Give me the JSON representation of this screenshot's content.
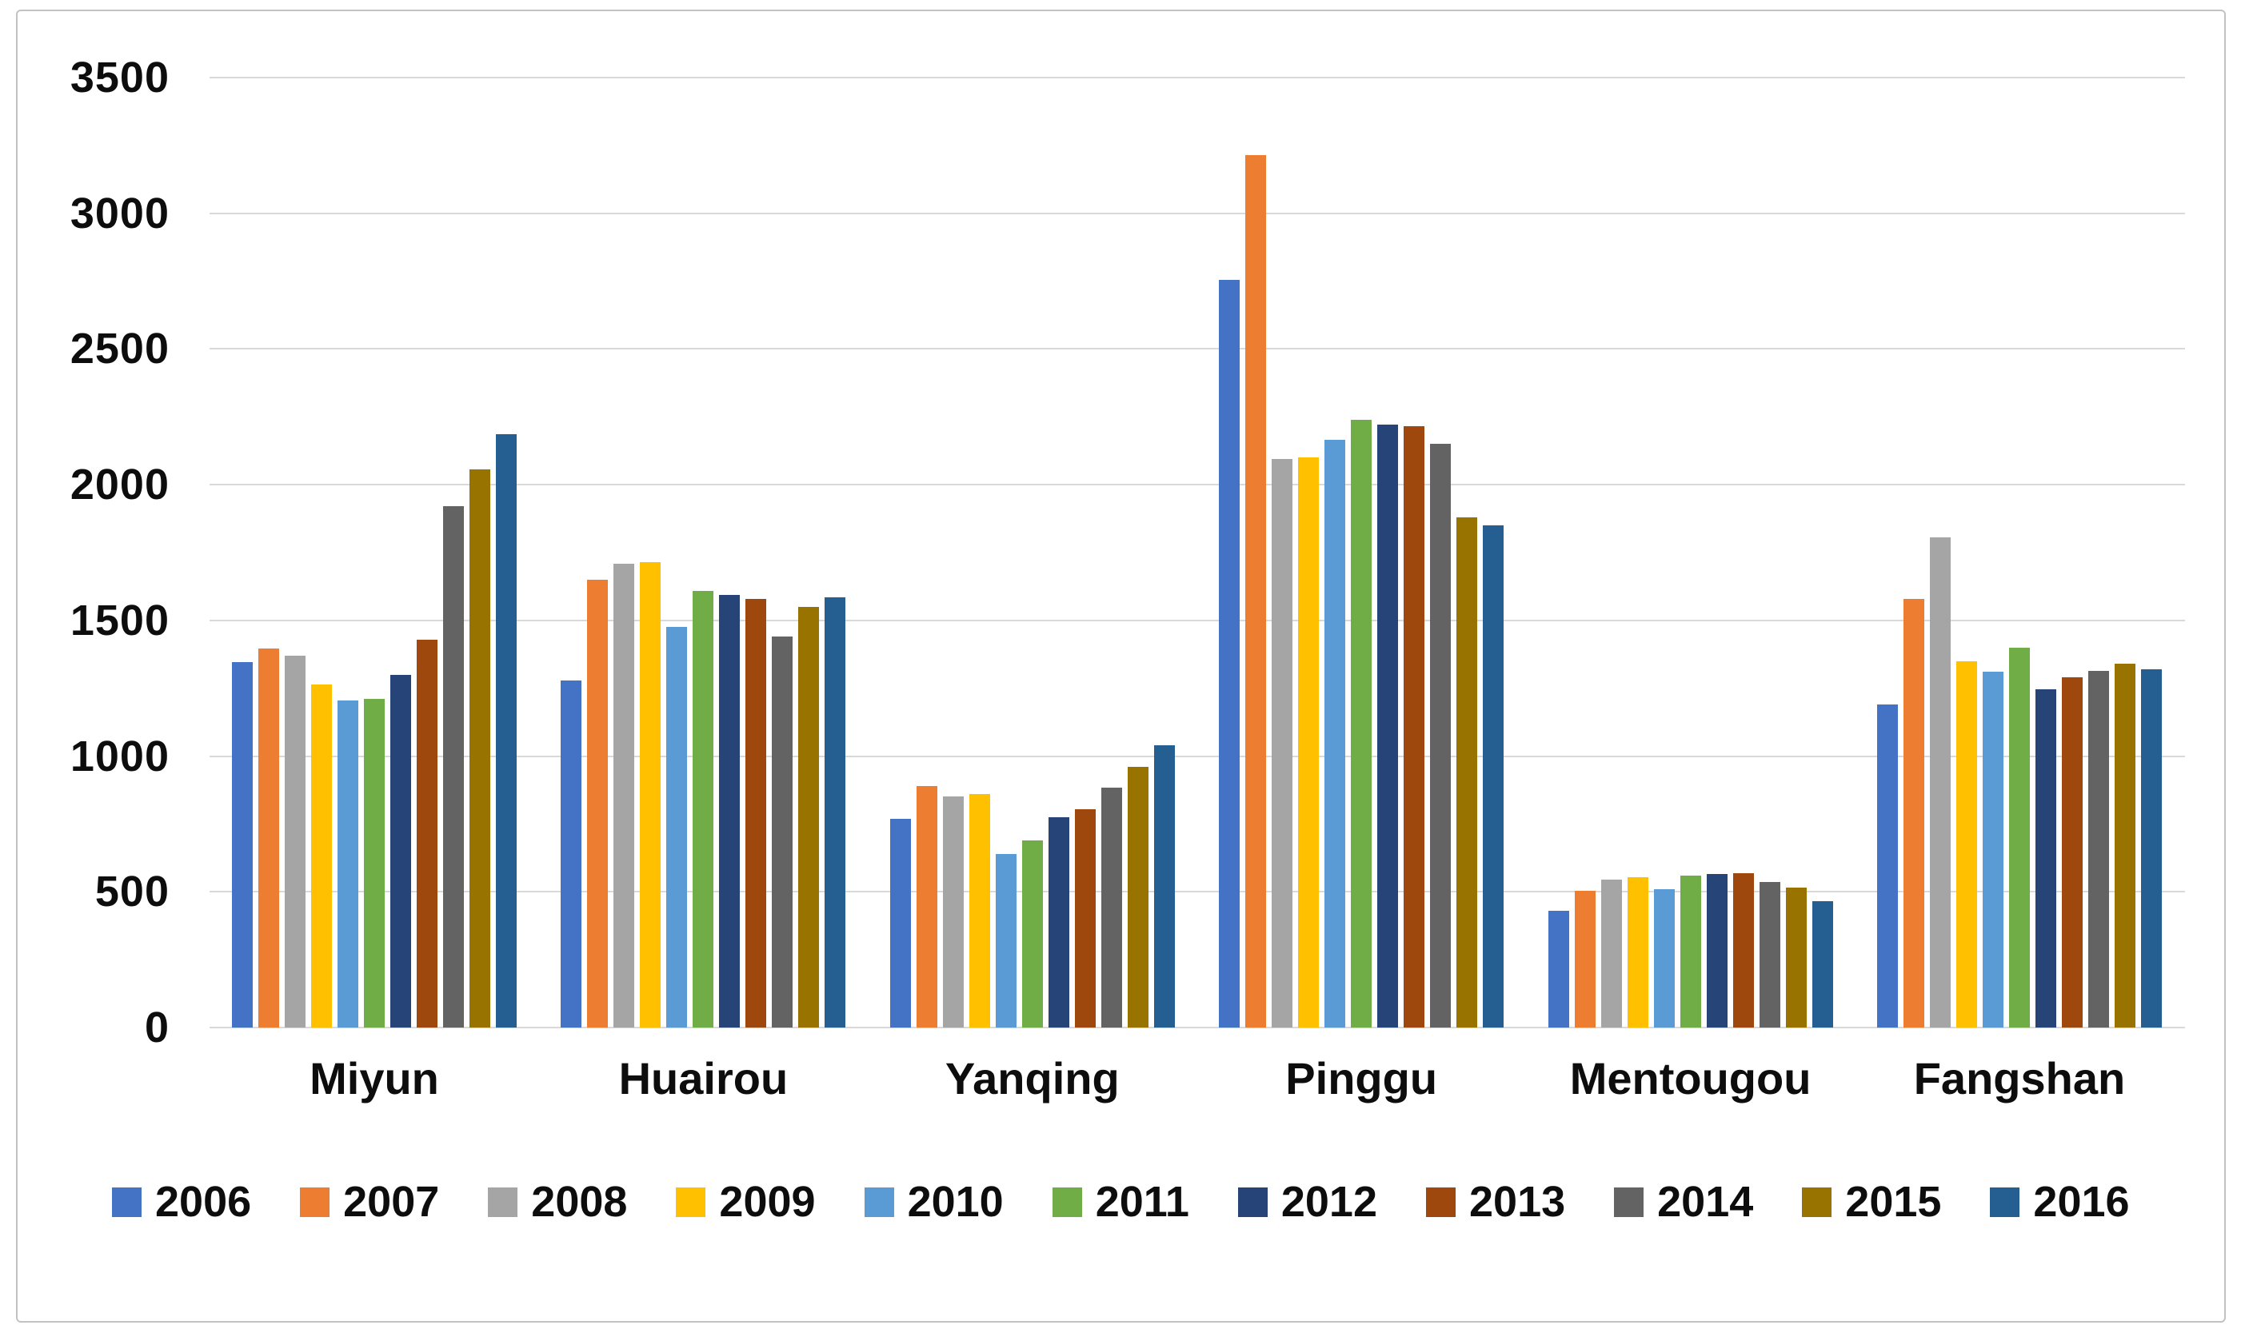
{
  "figure": {
    "background": "#FFFFFF",
    "frame_color": "#C2C2C2",
    "gridline_color": "#D9D9D9",
    "text_color": "#0D0D0D"
  },
  "chart_data": {
    "type": "bar",
    "title": "",
    "xlabel": "",
    "ylabel": "",
    "categories": [
      "Miyun",
      "Huairou",
      "Yanqing",
      "Pinggu",
      "Mentougou",
      "Fangshan"
    ],
    "series": [
      {
        "name": "2006",
        "color": "#4472C4",
        "values": [
          1345,
          1280,
          770,
          2755,
          430,
          1190
        ]
      },
      {
        "name": "2007",
        "color": "#ED7D31",
        "values": [
          1395,
          1650,
          890,
          3215,
          505,
          1580
        ]
      },
      {
        "name": "2008",
        "color": "#A5A5A5",
        "values": [
          1370,
          1710,
          850,
          2095,
          545,
          1805
        ]
      },
      {
        "name": "2009",
        "color": "#FFC000",
        "values": [
          1265,
          1715,
          860,
          2100,
          555,
          1350
        ]
      },
      {
        "name": "2010",
        "color": "#5B9BD5",
        "values": [
          1205,
          1475,
          640,
          2165,
          510,
          1310
        ]
      },
      {
        "name": "2011",
        "color": "#70AD47",
        "values": [
          1210,
          1610,
          690,
          2240,
          560,
          1400
        ]
      },
      {
        "name": "2012",
        "color": "#264478",
        "values": [
          1300,
          1595,
          775,
          2220,
          565,
          1245
        ]
      },
      {
        "name": "2013",
        "color": "#9E480E",
        "values": [
          1430,
          1580,
          805,
          2215,
          570,
          1290
        ]
      },
      {
        "name": "2014",
        "color": "#636363",
        "values": [
          1920,
          1440,
          885,
          2150,
          535,
          1315
        ]
      },
      {
        "name": "2015",
        "color": "#997300",
        "values": [
          2055,
          1550,
          960,
          1880,
          515,
          1340
        ]
      },
      {
        "name": "2016",
        "color": "#255E91",
        "values": [
          2185,
          1585,
          1040,
          1850,
          465,
          1320
        ]
      }
    ],
    "ylim": [
      0,
      3500
    ],
    "ytick_step": 500,
    "ytick_labels": [
      "0",
      "500",
      "1000",
      "1500",
      "2000",
      "2500",
      "3000",
      "3500"
    ],
    "grid": true,
    "legend_position": "bottom"
  }
}
